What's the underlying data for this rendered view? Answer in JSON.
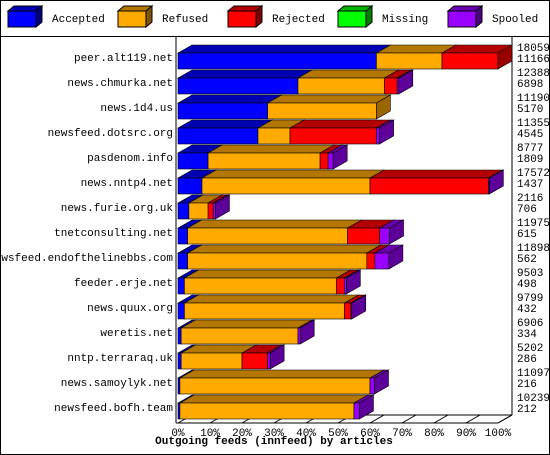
{
  "chart_data": {
    "type": "bar3d-stacked-horizontal",
    "x_label": "Outgoing feeds (innfeed) by articles",
    "categories": [
      "peer.alt119.net",
      "news.chmurka.net",
      "news.1d4.us",
      "newsfeed.dotsrc.org",
      "pasdenom.info",
      "news.nntp4.net",
      "news.furie.org.uk",
      "tnetconsulting.net",
      "newsfeed.endofthelinebbs.com",
      "feeder.erje.net",
      "news.quux.org",
      "weretis.net",
      "nntp.terraraq.uk",
      "news.samoylyk.net",
      "newsfeed.bofh.team"
    ],
    "series": [
      {
        "name": "Accepted",
        "color": "#0000ff",
        "values": [
          62,
          37.5,
          28,
          25,
          9.4,
          7.5,
          3.4,
          3,
          3,
          2,
          2,
          1,
          1,
          0.6,
          0.6
        ]
      },
      {
        "name": "Refused",
        "color": "#ffaa00",
        "values": [
          20.5,
          27,
          34,
          10,
          35,
          52.5,
          6,
          50,
          56,
          47.5,
          50,
          36.5,
          19,
          59.4,
          54.4
        ]
      },
      {
        "name": "Rejected",
        "color": "#ff0000",
        "values": [
          17.5,
          4,
          0,
          27,
          2.5,
          37,
          1.6,
          10,
          2.5,
          2.5,
          2,
          0,
          8,
          0,
          0
        ]
      },
      {
        "name": "Missing",
        "color": "#00ff00",
        "values": [
          0,
          0,
          0,
          0,
          0,
          0,
          0,
          0,
          0,
          0,
          0,
          0,
          0,
          0,
          0
        ]
      },
      {
        "name": "Spooled",
        "color": "#9900ff",
        "values": [
          0,
          0.5,
          0,
          1,
          1.6,
          0.3,
          0.7,
          3.1,
          4.4,
          0.6,
          0.3,
          0.7,
          0.8,
          1.4,
          1.7
        ]
      }
    ],
    "offered": [
      18059,
      12388,
      11190,
      11355,
      8777,
      17572,
      2116,
      11975,
      11898,
      9503,
      9799,
      6906,
      5202,
      11097,
      10239
    ],
    "accepted": [
      11166,
      6898,
      5170,
      4545,
      1809,
      1437,
      706,
      615,
      562,
      498,
      432,
      334,
      286,
      216,
      212
    ],
    "xlim": [
      0,
      100
    ],
    "xticks": [
      {
        "value": 0,
        "label": "0%"
      },
      {
        "value": 10,
        "label": "10%"
      },
      {
        "value": 20,
        "label": "20%"
      },
      {
        "value": 30,
        "label": "30%"
      },
      {
        "value": 40,
        "label": "40%"
      },
      {
        "value": 50,
        "label": "50%"
      },
      {
        "value": 60,
        "label": "60%"
      },
      {
        "value": 70,
        "label": "70%"
      },
      {
        "value": 80,
        "label": "80%"
      },
      {
        "value": 90,
        "label": "90%"
      },
      {
        "value": 100,
        "label": "100%"
      }
    ]
  }
}
